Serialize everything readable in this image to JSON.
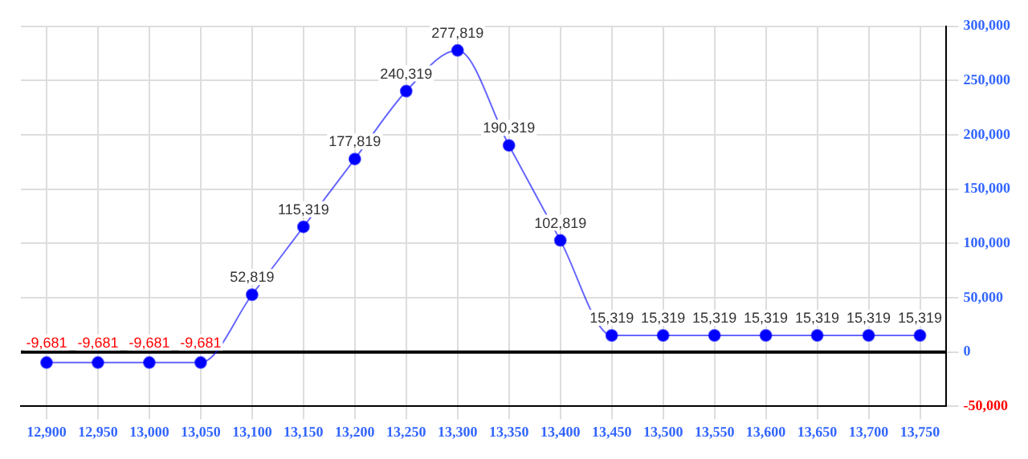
{
  "chart_data": {
    "type": "line",
    "categories": [
      "12,900",
      "12,950",
      "13,000",
      "13,050",
      "13,100",
      "13,150",
      "13,200",
      "13,250",
      "13,300",
      "13,350",
      "13,400",
      "13,450",
      "13,500",
      "13,550",
      "13,600",
      "13,650",
      "13,700",
      "13,750"
    ],
    "series": [
      {
        "color": "#0000ff",
        "values": [
          -9681,
          -9681,
          -9681,
          -9681,
          52819,
          115319,
          177819,
          240319,
          277819,
          190319,
          102819,
          15319,
          15319,
          15319,
          15319,
          15319,
          15319,
          15319
        ],
        "value_labels": [
          "-9,681",
          "-9,681",
          "-9,681",
          "-9,681",
          "52,819",
          "115,319",
          "177,819",
          "240,319",
          "277,819",
          "190,319",
          "102,819",
          "15,319",
          "15,319",
          "15,319",
          "15,319",
          "15,319",
          "15,319",
          "15,319"
        ]
      }
    ],
    "ylim": [
      -50000,
      300000
    ],
    "yticks": [
      {
        "value": -50000,
        "label": "-50,000"
      },
      0,
      {
        "value": 50000,
        "label": "50,000"
      },
      {
        "value": 100000,
        "label": "100,000"
      },
      {
        "value": 150000,
        "label": "150,000"
      },
      {
        "value": 200000,
        "label": "200,000"
      },
      {
        "value": 250000,
        "label": "250,000"
      },
      {
        "value": 300000,
        "label": "300,000"
      }
    ],
    "grid": true,
    "legend": false,
    "marker": "circle",
    "line_style": "solid"
  }
}
